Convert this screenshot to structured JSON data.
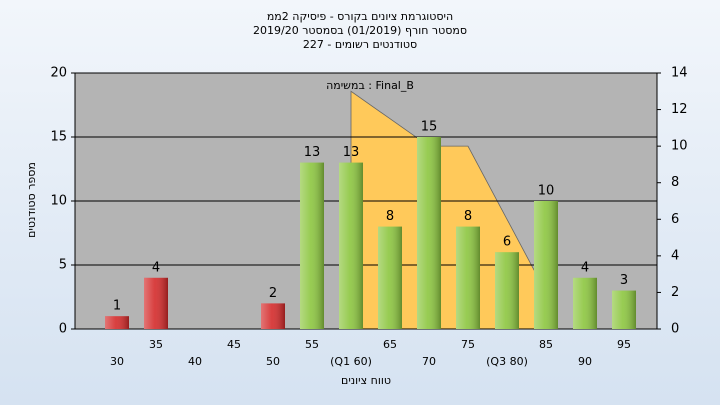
{
  "chart_data": {
    "type": "bar",
    "title": "היסטוגרמת ציונים בקורס - פיסיקה 2ממ",
    "subtitle": "2019/20 סמסטר חורף  (01/2019)  בסמסטר",
    "subtitle2": "סטודנטים רשומים - 227",
    "x_label": "טווח ציונים",
    "y_label": "מספר סטודנטים",
    "categories": [
      "30",
      "35",
      "40",
      "45",
      "50",
      "55",
      "(Q1 60)",
      "65",
      "70",
      "75",
      "(Q3 80)",
      "85",
      "90",
      "95"
    ],
    "values": [
      1,
      4,
      null,
      null,
      2,
      13,
      13,
      8,
      15,
      8,
      6,
      10,
      4,
      3
    ],
    "colors": [
      "#d42a2a",
      "#d42a2a",
      "#d42a2a",
      "#d42a2a",
      "#d42a2a",
      "#8cc63f",
      "#8cc63f",
      "#8cc63f",
      "#8cc63f",
      "#8cc63f",
      "#8cc63f",
      "#8cc63f",
      "#8cc63f",
      "#8cc63f"
    ],
    "area": {
      "name": "במשימה : Final_B",
      "color": "#ffc95a",
      "axis": "y2",
      "x": [
        "(Q1 60)",
        "65",
        "70",
        "75",
        "(Q3 80)",
        "85"
      ],
      "values": [
        13,
        11.5,
        10,
        10,
        6,
        2
      ]
    },
    "ylim": [
      0,
      20
    ],
    "yticks": [
      0,
      5,
      10,
      15,
      20
    ],
    "y2lim": [
      0,
      14
    ],
    "y2ticks": [
      0,
      2,
      4,
      6,
      8,
      10,
      12,
      14
    ],
    "grid": true
  }
}
